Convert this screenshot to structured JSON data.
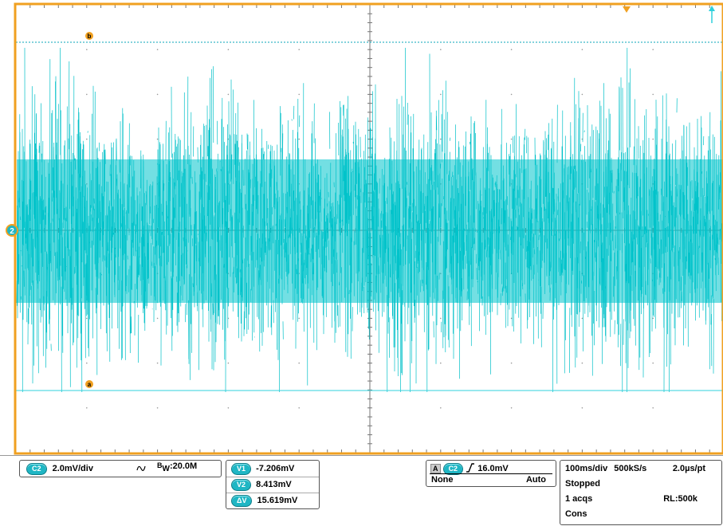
{
  "colors": {
    "frame": "#f0a020",
    "trace": "#00c4cc",
    "grid": "#888888",
    "cursor": "#0aa5b8",
    "badge": "#1fb6c4"
  },
  "markers": {
    "channel_marker": "2",
    "cursor_a": "a",
    "cursor_b": "b",
    "trigger_position_icon": "trigger-position-triangle",
    "trigger_level_icon": "arrow-up"
  },
  "channel_panel": {
    "badge": "C2",
    "scale": "2.0mV/div",
    "coupling_icon": "ac-coupling-wave",
    "bw_prefix": "B",
    "bw_sub": "W",
    "bw_value": ":20.0M"
  },
  "cursor_panel": {
    "rows": [
      {
        "badge": "V1",
        "value": "-7.206mV"
      },
      {
        "badge": "V2",
        "value": "8.413mV"
      },
      {
        "badge": "ΔV",
        "value": "15.619mV"
      }
    ]
  },
  "trigger_panel": {
    "source_letter": "A",
    "badge": "C2",
    "slope_icon": "rising-edge",
    "level": "16.0mV",
    "mode_left": "None",
    "mode_right": "Auto"
  },
  "timebase_panel": {
    "timebase": "100ms/div",
    "sample_rate": "500kS/s",
    "resolution": "2.0µs/pt",
    "state": "Stopped",
    "acqs": "1 acqs",
    "record_length": "RL:500k",
    "acq_mode": "Cons"
  }
}
